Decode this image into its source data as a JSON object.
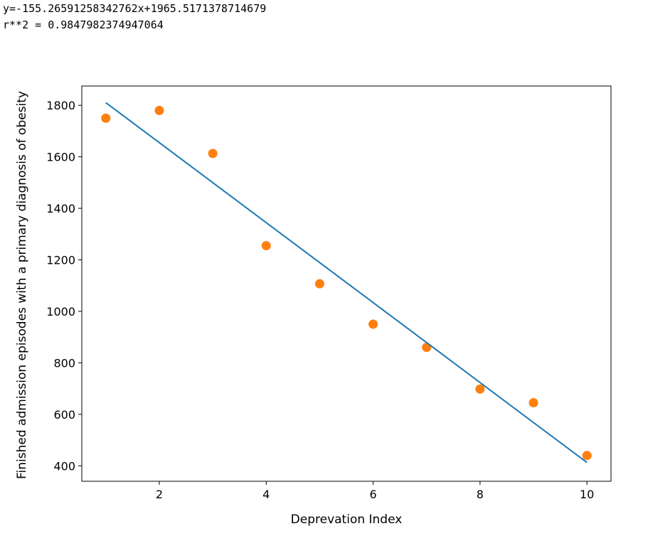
{
  "output": {
    "equation": "y=-155.26591258342762x+1965.5171378714679",
    "r_squared": "r**2 = 0.9847982374947064"
  },
  "chart_data": {
    "type": "scatter",
    "title": "",
    "xlabel": "Deprevation Index",
    "ylabel": "Finished admission episodes with a primary diagnosis of obesity",
    "xlim": [
      0.55,
      10.45
    ],
    "ylim": [
      340,
      1875
    ],
    "x_ticks": [
      2,
      4,
      6,
      8,
      10
    ],
    "y_ticks": [
      400,
      600,
      800,
      1000,
      1200,
      1400,
      1600,
      1800
    ],
    "grid": false,
    "series": [
      {
        "kind": "scatter",
        "color": "#ff7f0e",
        "x": [
          1,
          2,
          3,
          4,
          5,
          6,
          7,
          8,
          9,
          10
        ],
        "y": [
          1750,
          1780,
          1613,
          1255,
          1107,
          950,
          860,
          698,
          645,
          440
        ]
      },
      {
        "kind": "line",
        "color": "#1f77b4",
        "slope": -155.26591258342762,
        "intercept": 1965.5171378714679,
        "x": [
          1,
          10
        ]
      }
    ]
  }
}
